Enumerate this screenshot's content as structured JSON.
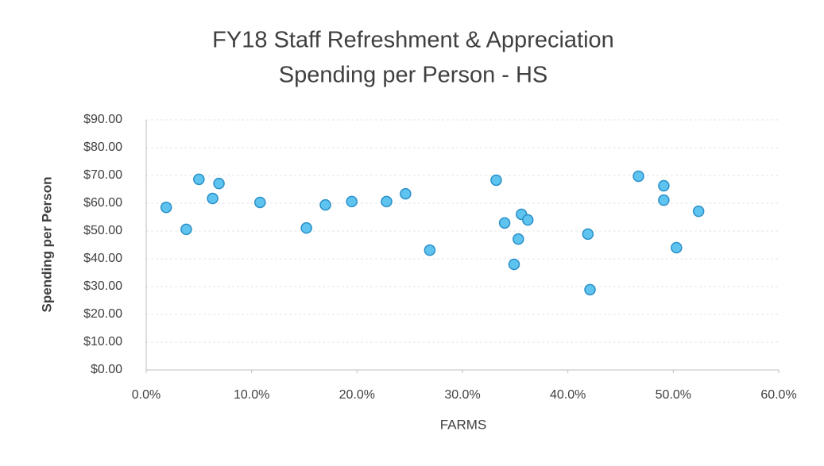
{
  "chart_data": {
    "type": "scatter",
    "title": [
      "FY18 Staff Refreshment & Appreciation",
      "Spending per Person - HS"
    ],
    "x_label": "FARMS",
    "y_label": "Spending per Person",
    "x": [
      1.9,
      3.8,
      5.0,
      6.3,
      6.9,
      10.8,
      15.2,
      17.0,
      19.5,
      22.8,
      24.6,
      26.9,
      33.2,
      34.0,
      34.9,
      35.3,
      35.6,
      36.2,
      41.9,
      42.1,
      46.7,
      49.1,
      49.1,
      50.3,
      52.4
    ],
    "values": [
      58.5,
      50.6,
      68.6,
      61.7,
      67.1,
      60.3,
      51.1,
      59.4,
      60.6,
      60.6,
      63.4,
      43.1,
      68.3,
      52.9,
      38.0,
      47.1,
      56.0,
      54.0,
      48.9,
      28.9,
      69.7,
      66.3,
      61.1,
      44.0,
      57.1
    ],
    "color": "#5ec3ee",
    "xlim": [
      0,
      60
    ],
    "xticks": [
      {
        "value": 0,
        "label": "0.0%"
      },
      {
        "value": 10,
        "label": "10.0%"
      },
      {
        "value": 20,
        "label": "20.0%"
      },
      {
        "value": 30,
        "label": "30.0%"
      },
      {
        "value": 40,
        "label": "40.0%"
      },
      {
        "value": 50,
        "label": "50.0%"
      },
      {
        "value": 60,
        "label": "60.0%"
      }
    ],
    "ylim": [
      0,
      90
    ],
    "yticks": [
      {
        "value": 0,
        "label": "$0.00"
      },
      {
        "value": 10,
        "label": "$10.00"
      },
      {
        "value": 20,
        "label": "$20.00"
      },
      {
        "value": 30,
        "label": "$30.00"
      },
      {
        "value": 40,
        "label": "$40.00"
      },
      {
        "value": 50,
        "label": "$50.00"
      },
      {
        "value": 60,
        "label": "$60.00"
      },
      {
        "value": 70,
        "label": "$70.00"
      },
      {
        "value": 80,
        "label": "$80.00"
      },
      {
        "value": 90,
        "label": "$90.00"
      }
    ],
    "grid": true
  }
}
